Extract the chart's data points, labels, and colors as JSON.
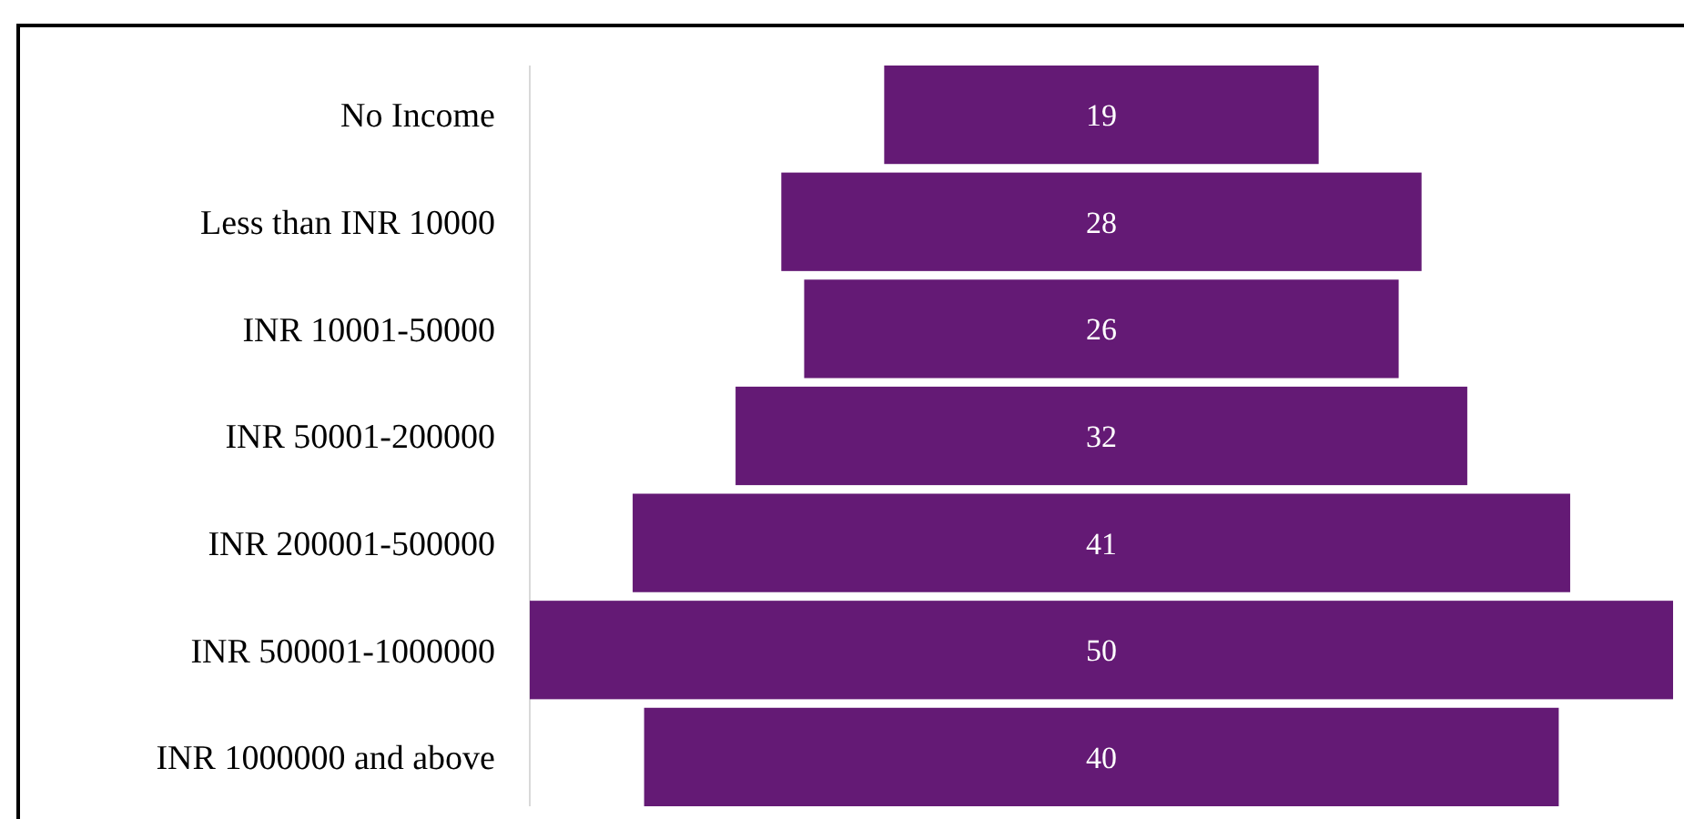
{
  "chart_data": {
    "type": "other",
    "categories": [
      "No Income",
      "Less than INR 10000",
      "INR 10001-50000",
      "INR 50001-200000",
      "INR 200001-500000",
      "INR 500001-1000000",
      "INR 1000000 and above"
    ],
    "values": [
      19,
      28,
      26,
      32,
      41,
      50,
      40
    ],
    "color": "#641a75",
    "data_labels": true
  }
}
